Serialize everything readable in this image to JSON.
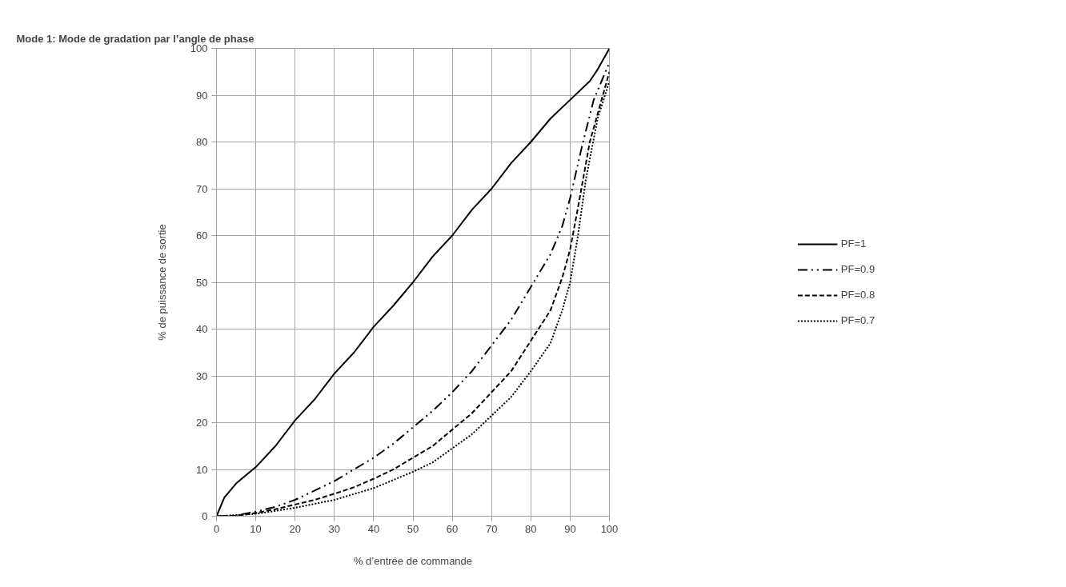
{
  "chart_data": {
    "type": "line",
    "title": "Mode 1: Mode de gradation par l’angle de phase",
    "xlabel": "% d’entrée de commande",
    "ylabel": "% de puissance de sortie",
    "xlim": [
      0,
      100
    ],
    "ylim": [
      0,
      100
    ],
    "xticks": [
      0,
      10,
      20,
      30,
      40,
      50,
      60,
      70,
      80,
      90,
      100
    ],
    "yticks": [
      0,
      10,
      20,
      30,
      40,
      50,
      60,
      70,
      80,
      90,
      100
    ],
    "grid": true,
    "legend": "right",
    "marker": "none",
    "series": [
      {
        "name": "PF=1",
        "color": "#000000",
        "line_style": "solid",
        "x": [
          0,
          2,
          5,
          10,
          15,
          20,
          25,
          30,
          35,
          40,
          45,
          50,
          55,
          60,
          65,
          70,
          75,
          80,
          85,
          90,
          95,
          97,
          100
        ],
        "values": [
          0,
          4,
          7,
          10.5,
          15,
          20.5,
          25,
          30.5,
          35,
          40.5,
          45,
          50,
          55.5,
          60,
          65.5,
          70,
          75.5,
          80,
          85,
          89,
          93,
          95.5,
          100
        ]
      },
      {
        "name": "PF=0.9",
        "color": "#000000",
        "line_style": "dashdot",
        "x": [
          0,
          5,
          10,
          15,
          20,
          25,
          30,
          35,
          40,
          45,
          50,
          55,
          60,
          65,
          70,
          75,
          80,
          85,
          88,
          90,
          93,
          96,
          100
        ],
        "values": [
          0,
          0.2,
          1,
          2,
          3.5,
          5.5,
          7.5,
          10,
          12.5,
          15.5,
          19,
          22.5,
          26.5,
          31,
          36.5,
          42,
          49,
          56,
          62,
          68,
          79,
          89,
          97
        ]
      },
      {
        "name": "PF=0.8",
        "color": "#000000",
        "line_style": "dashed",
        "x": [
          0,
          5,
          10,
          15,
          20,
          25,
          30,
          35,
          40,
          45,
          50,
          55,
          60,
          65,
          70,
          75,
          80,
          85,
          88,
          90,
          92,
          95,
          100
        ],
        "values": [
          0,
          0.1,
          0.7,
          1.5,
          2.5,
          3.5,
          4.8,
          6.2,
          8,
          10,
          12.5,
          15,
          18.5,
          22,
          26.5,
          31,
          37.5,
          44,
          51,
          57,
          66,
          80,
          95
        ]
      },
      {
        "name": "PF=0.7",
        "color": "#000000",
        "line_style": "dotted",
        "x": [
          0,
          10,
          20,
          30,
          40,
          50,
          55,
          60,
          65,
          70,
          75,
          80,
          85,
          88,
          90,
          92,
          94,
          97,
          100
        ],
        "values": [
          0,
          0.5,
          1.8,
          3.5,
          6,
          9.5,
          11.5,
          14.5,
          17.5,
          21.5,
          25.5,
          31,
          37,
          44,
          50,
          60,
          72,
          85,
          93
        ]
      }
    ]
  }
}
